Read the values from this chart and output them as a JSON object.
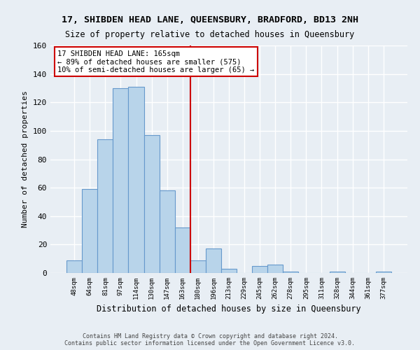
{
  "title": "17, SHIBDEN HEAD LANE, QUEENSBURY, BRADFORD, BD13 2NH",
  "subtitle": "Size of property relative to detached houses in Queensbury",
  "xlabel": "Distribution of detached houses by size in Queensbury",
  "ylabel": "Number of detached properties",
  "bar_color": "#b8d4ea",
  "bar_edge_color": "#6699cc",
  "background_color": "#e8eef4",
  "grid_color": "#ffffff",
  "categories": [
    "48sqm",
    "64sqm",
    "81sqm",
    "97sqm",
    "114sqm",
    "130sqm",
    "147sqm",
    "163sqm",
    "180sqm",
    "196sqm",
    "213sqm",
    "229sqm",
    "245sqm",
    "262sqm",
    "278sqm",
    "295sqm",
    "311sqm",
    "328sqm",
    "344sqm",
    "361sqm",
    "377sqm"
  ],
  "values": [
    9,
    59,
    94,
    130,
    131,
    97,
    58,
    32,
    9,
    17,
    3,
    0,
    5,
    6,
    1,
    0,
    0,
    1,
    0,
    0,
    1
  ],
  "ylim": [
    0,
    160
  ],
  "yticks": [
    0,
    20,
    40,
    60,
    80,
    100,
    120,
    140,
    160
  ],
  "property_line_label": "17 SHIBDEN HEAD LANE: 165sqm",
  "annotation_line1": "← 89% of detached houses are smaller (575)",
  "annotation_line2": "10% of semi-detached houses are larger (65) →",
  "annotation_box_color": "#ffffff",
  "annotation_box_edge_color": "#cc0000",
  "property_line_color": "#cc0000",
  "footer_line1": "Contains HM Land Registry data © Crown copyright and database right 2024.",
  "footer_line2": "Contains public sector information licensed under the Open Government Licence v3.0."
}
